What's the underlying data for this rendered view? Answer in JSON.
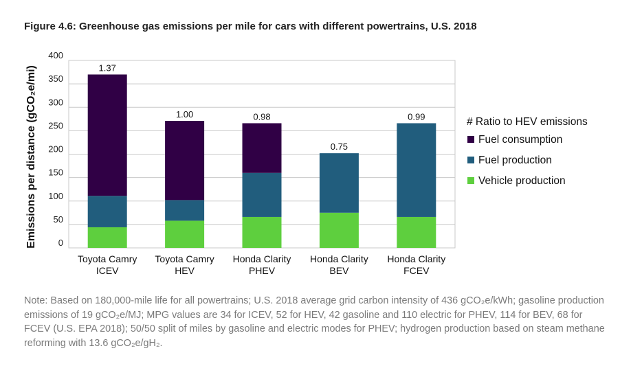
{
  "figure": {
    "title": "Figure 4.6: Greenhouse gas emissions per mile for cars with different powertrains, U.S. 2018",
    "note": "Note: Based on 180,000-mile life for all powertrains; U.S. 2018 average grid carbon intensity of 436 gCO₂e/kWh; gasoline production emissions of 19 gCO₂e/MJ; MPG values are 34 for ICEV, 52 for HEV, 42 gasoline and 110 electric for PHEV, 114 for BEV, 68 for FCEV (U.S. EPA 2018); 50/50 split of miles by gasoline and electric modes for PHEV; hydrogen production based on steam methane reforming with 13.6 gCO₂e/gH₂."
  },
  "chart_data": {
    "type": "bar",
    "stacked": true,
    "categories": [
      [
        "Toyota Camry",
        "ICEV"
      ],
      [
        "Toyota Camry",
        "HEV"
      ],
      [
        "Honda Clarity",
        "PHEV"
      ],
      [
        "Honda Clarity",
        "BEV"
      ],
      [
        "Honda Clarity",
        "FCEV"
      ]
    ],
    "series": [
      {
        "name": "Vehicle production",
        "color": "#5ecf3e",
        "values": [
          44,
          58,
          66,
          75,
          66
        ]
      },
      {
        "name": "Fuel production",
        "color": "#215d7d",
        "values": [
          67,
          44,
          94,
          127,
          200
        ]
      },
      {
        "name": "Fuel consumption",
        "color": "#300045",
        "values": [
          259,
          169,
          106,
          0,
          0
        ]
      }
    ],
    "data_labels": [
      "1.37",
      "1.00",
      "0.98",
      "0.75",
      "0.99"
    ],
    "ylabel": "Emissions per distance (gCO₂e/mi)",
    "xlabel": "",
    "ylim": [
      0,
      400
    ],
    "yticks": [
      0,
      50,
      100,
      150,
      200,
      250,
      300,
      350,
      400
    ],
    "grid": true,
    "legend": {
      "position": "right",
      "title": "# Ratio to HEV emissions",
      "items": [
        "Fuel consumption",
        "Fuel production",
        "Vehicle production"
      ]
    }
  }
}
